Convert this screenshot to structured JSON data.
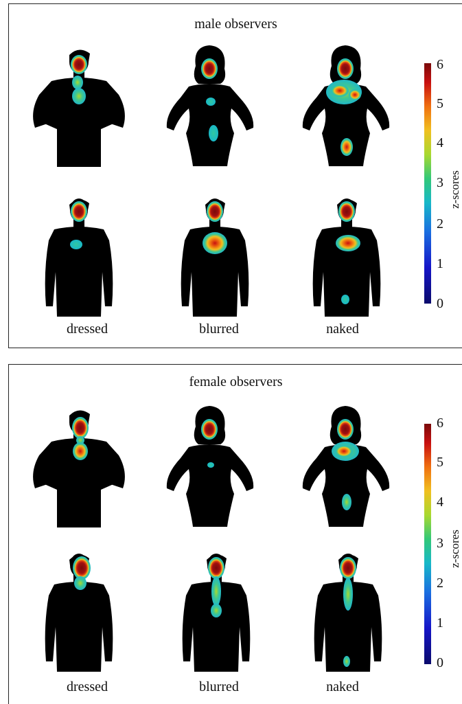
{
  "panels": [
    {
      "id": "male",
      "title": "male observers",
      "column_labels": [
        "dressed",
        "blurred",
        "naked"
      ],
      "colorbar": {
        "label": "z-scores",
        "ticks": [
          "6",
          "5",
          "4",
          "3",
          "2",
          "1",
          "0"
        ]
      }
    },
    {
      "id": "female",
      "title": "female observers",
      "column_labels": [
        "dressed",
        "blurred",
        "naked"
      ],
      "colorbar": {
        "label": "z-scores",
        "ticks": [
          "6",
          "5",
          "4",
          "3",
          "2",
          "1",
          "0"
        ]
      }
    }
  ],
  "colormap": [
    "#0a0a6b",
    "#1515c8",
    "#1a6fe0",
    "#18b8c8",
    "#32c878",
    "#a8d830",
    "#f0c020",
    "#f07010",
    "#c81010",
    "#7a0a0a"
  ]
}
